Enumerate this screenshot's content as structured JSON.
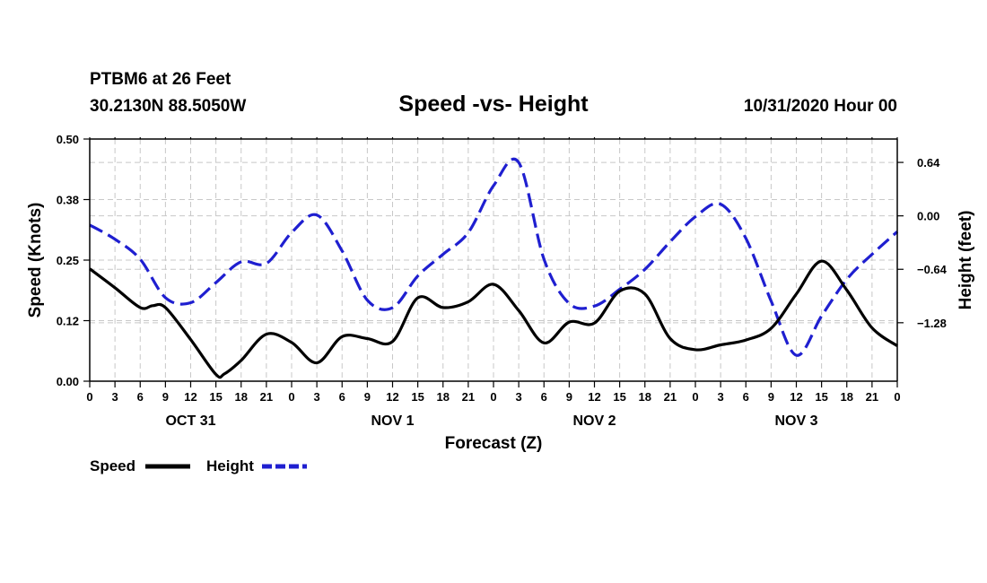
{
  "chart_data": {
    "type": "line",
    "station_title": "PTBM6 at 26 Feet",
    "location": "30.2130N 88.5050W",
    "title": "Speed -vs- Height",
    "date_label": "10/31/2020 Hour 00",
    "xlabel": "Forecast (Z)",
    "ylabel_left": "Speed (Knots)",
    "ylabel_right": "Height (feet)",
    "x_range_hours": [
      0,
      96
    ],
    "x_ticks": [
      {
        "hour": 0,
        "label": "0"
      },
      {
        "hour": 3,
        "label": "3"
      },
      {
        "hour": 6,
        "label": "6"
      },
      {
        "hour": 9,
        "label": "9"
      },
      {
        "hour": 12,
        "label": "12"
      },
      {
        "hour": 15,
        "label": "15"
      },
      {
        "hour": 18,
        "label": "18"
      },
      {
        "hour": 21,
        "label": "21"
      },
      {
        "hour": 24,
        "label": "0"
      },
      {
        "hour": 27,
        "label": "3"
      },
      {
        "hour": 30,
        "label": "6"
      },
      {
        "hour": 33,
        "label": "9"
      },
      {
        "hour": 36,
        "label": "12"
      },
      {
        "hour": 39,
        "label": "15"
      },
      {
        "hour": 42,
        "label": "18"
      },
      {
        "hour": 45,
        "label": "21"
      },
      {
        "hour": 48,
        "label": "0"
      },
      {
        "hour": 51,
        "label": "3"
      },
      {
        "hour": 54,
        "label": "6"
      },
      {
        "hour": 57,
        "label": "9"
      },
      {
        "hour": 60,
        "label": "12"
      },
      {
        "hour": 63,
        "label": "15"
      },
      {
        "hour": 66,
        "label": "18"
      },
      {
        "hour": 69,
        "label": "21"
      },
      {
        "hour": 72,
        "label": "0"
      },
      {
        "hour": 75,
        "label": "3"
      },
      {
        "hour": 78,
        "label": "6"
      },
      {
        "hour": 81,
        "label": "9"
      },
      {
        "hour": 84,
        "label": "12"
      },
      {
        "hour": 87,
        "label": "15"
      },
      {
        "hour": 90,
        "label": "18"
      },
      {
        "hour": 93,
        "label": "21"
      },
      {
        "hour": 96,
        "label": "0"
      }
    ],
    "day_labels": [
      {
        "hour": 12,
        "label": "OCT 31"
      },
      {
        "hour": 36,
        "label": "NOV 1"
      },
      {
        "hour": 60,
        "label": "NOV 2"
      },
      {
        "hour": 84,
        "label": "NOV 3"
      }
    ],
    "y_left": {
      "range": [
        0,
        0.5
      ],
      "ticks": [
        {
          "value": 0.0,
          "label": "0.00"
        },
        {
          "value": 0.125,
          "label": "0.12"
        },
        {
          "value": 0.25,
          "label": "0.25"
        },
        {
          "value": 0.375,
          "label": "0.38"
        },
        {
          "value": 0.5,
          "label": "0.50"
        }
      ]
    },
    "y_right": {
      "range": [
        -1.98,
        0.92
      ],
      "ticks": [
        {
          "value": 0.64,
          "label": "0.64"
        },
        {
          "value": 0.0,
          "label": "0.00"
        },
        {
          "value": -0.64,
          "label": "−0.64"
        },
        {
          "value": -1.28,
          "label": "−1.28"
        }
      ]
    },
    "series": [
      {
        "name": "Speed",
        "axis": "left",
        "color": "#000000",
        "dash": "solid",
        "x": [
          0,
          3,
          6,
          7.5,
          9,
          12,
          15,
          16,
          18,
          21,
          24,
          27,
          30,
          33,
          36,
          39,
          42,
          45,
          48,
          51,
          54,
          57,
          60,
          63,
          66,
          69,
          72,
          75,
          78,
          81,
          84,
          87,
          90,
          93,
          96
        ],
        "values": [
          0.232,
          0.193,
          0.152,
          0.156,
          0.152,
          0.086,
          0.014,
          0.015,
          0.043,
          0.097,
          0.08,
          0.038,
          0.092,
          0.088,
          0.082,
          0.172,
          0.152,
          0.164,
          0.2,
          0.146,
          0.079,
          0.122,
          0.12,
          0.186,
          0.18,
          0.088,
          0.065,
          0.075,
          0.085,
          0.109,
          0.18,
          0.248,
          0.188,
          0.11,
          0.073
        ]
      },
      {
        "name": "Height",
        "axis": "right",
        "color": "#1f1fd0",
        "dash": "dashed",
        "x": [
          0,
          3,
          6,
          9,
          12,
          15,
          18,
          21,
          24,
          27,
          30,
          33,
          36,
          39,
          42,
          45,
          48,
          51,
          54,
          57,
          60,
          63,
          66,
          69,
          72,
          75,
          78,
          81,
          84,
          87,
          90,
          93,
          96
        ],
        "values": [
          -0.11,
          -0.28,
          -0.52,
          -0.98,
          -1.04,
          -0.8,
          -0.55,
          -0.57,
          -0.2,
          0.01,
          -0.42,
          -1.01,
          -1.1,
          -0.72,
          -0.46,
          -0.2,
          0.36,
          0.64,
          -0.52,
          -1.05,
          -1.08,
          -0.88,
          -0.64,
          -0.31,
          -0.01,
          0.14,
          -0.27,
          -1.02,
          -1.67,
          -1.2,
          -0.76,
          -0.46,
          -0.19
        ]
      }
    ],
    "legend": {
      "placement": "bottom-left",
      "items": [
        {
          "label": "Speed",
          "color": "#000000",
          "dash": "solid"
        },
        {
          "label": "Height",
          "color": "#1f1fd0",
          "dash": "dashed"
        }
      ]
    }
  }
}
